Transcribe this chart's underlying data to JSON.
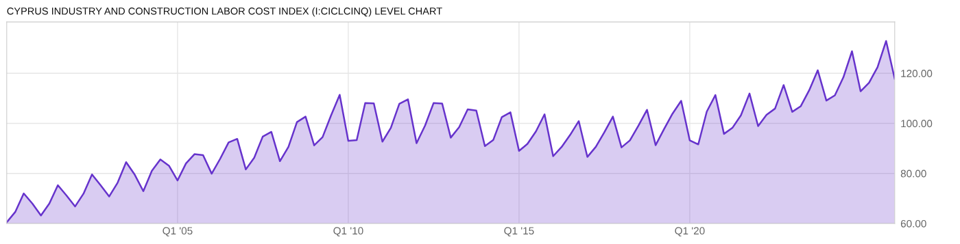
{
  "chart_data": {
    "type": "area",
    "title": "CYPRUS INDUSTRY AND CONSTRUCTION LABOR COST INDEX (I:CICLCINQ) LEVEL CHART",
    "x": [
      "2000-01",
      "2000-04",
      "2000-07",
      "2000-10",
      "2001-01",
      "2001-04",
      "2001-07",
      "2001-10",
      "2002-01",
      "2002-04",
      "2002-07",
      "2002-10",
      "2003-01",
      "2003-04",
      "2003-07",
      "2003-10",
      "2004-01",
      "2004-04",
      "2004-07",
      "2004-10",
      "2005-01",
      "2005-04",
      "2005-07",
      "2005-10",
      "2006-01",
      "2006-04",
      "2006-07",
      "2006-10",
      "2007-01",
      "2007-04",
      "2007-07",
      "2007-10",
      "2008-01",
      "2008-04",
      "2008-07",
      "2008-10",
      "2009-01",
      "2009-04",
      "2009-07",
      "2009-10",
      "2010-01",
      "2010-04",
      "2010-07",
      "2010-10",
      "2011-01",
      "2011-04",
      "2011-07",
      "2011-10",
      "2012-01",
      "2012-04",
      "2012-07",
      "2012-10",
      "2013-01",
      "2013-04",
      "2013-07",
      "2013-10",
      "2014-01",
      "2014-04",
      "2014-07",
      "2014-10",
      "2015-01",
      "2015-04",
      "2015-07",
      "2015-10",
      "2016-01",
      "2016-04",
      "2016-07",
      "2016-10",
      "2017-01",
      "2017-04",
      "2017-07",
      "2017-10",
      "2018-01",
      "2018-04",
      "2018-07",
      "2018-10",
      "2019-01",
      "2019-04",
      "2019-07",
      "2019-10",
      "2020-01",
      "2020-04",
      "2020-07",
      "2020-10",
      "2021-01",
      "2021-04",
      "2021-07",
      "2021-10",
      "2022-01",
      "2022-04",
      "2022-07",
      "2022-10",
      "2023-01",
      "2023-04",
      "2023-07",
      "2023-10",
      "2024-01",
      "2024-04",
      "2024-07",
      "2024-10",
      "2025-01",
      "2025-04",
      "2025-07",
      "2025-10",
      "2026-01"
    ],
    "series": [
      {
        "color": "#6633cc",
        "values": [
          60.5,
          64.6,
          72.0,
          68.0,
          63.2,
          68.0,
          75.3,
          71.2,
          66.8,
          71.9,
          79.6,
          75.3,
          70.8,
          76.3,
          84.5,
          79.5,
          72.9,
          81.0,
          85.6,
          83.1,
          77.2,
          84.0,
          87.7,
          87.3,
          79.9,
          85.8,
          92.4,
          93.8,
          81.6,
          86.3,
          94.7,
          96.6,
          84.9,
          90.6,
          100.5,
          102.7,
          91.2,
          94.5,
          103.2,
          111.4,
          93.0,
          93.3,
          108.1,
          108.0,
          92.7,
          98.2,
          107.8,
          109.6,
          92.1,
          99.1,
          108.1,
          107.9,
          94.3,
          98.5,
          105.6,
          105.1,
          90.9,
          93.4,
          102.5,
          104.4,
          89.0,
          91.8,
          96.8,
          103.6,
          86.9,
          90.6,
          95.4,
          100.9,
          86.6,
          90.6,
          96.4,
          102.7,
          90.4,
          93.2,
          99.1,
          105.4,
          91.3,
          97.7,
          103.9,
          109.0,
          93.2,
          91.6,
          104.7,
          111.3,
          95.8,
          98.2,
          103.2,
          111.9,
          98.9,
          103.4,
          105.9,
          115.3,
          104.6,
          106.8,
          113.2,
          121.2,
          109.1,
          111.2,
          118.4,
          128.8,
          112.8,
          116.2,
          122.4,
          132.9,
          117.8
        ]
      }
    ],
    "xlim": [
      "2000-01",
      "2026-01"
    ],
    "xticks": [
      {
        "value": "2005-01",
        "label": "Q1 '05"
      },
      {
        "value": "2010-01",
        "label": "Q1 '10"
      },
      {
        "value": "2015-01",
        "label": "Q1 '15"
      },
      {
        "value": "2020-01",
        "label": "Q1 '20"
      }
    ],
    "ylim": [
      60,
      140.5
    ],
    "yticks": [
      {
        "value": 60,
        "label": "60.00"
      },
      {
        "value": 80,
        "label": "80.00"
      },
      {
        "value": 100,
        "label": "100.00"
      },
      {
        "value": 120,
        "label": "120.00"
      }
    ],
    "grid": true
  }
}
